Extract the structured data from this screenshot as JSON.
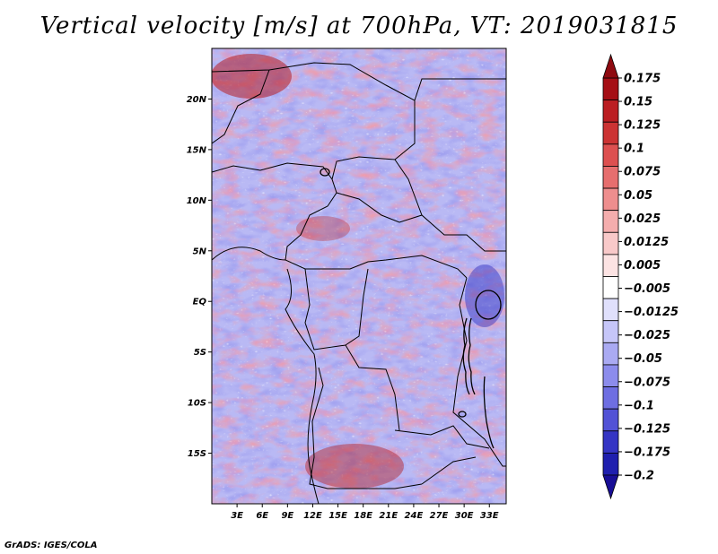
{
  "title": "Vertical velocity [m/s] at 700hPa, VT: 2019031815",
  "credit": "GrADS: IGES/COLA",
  "map": {
    "lon_range": [
      0,
      35
    ],
    "lat_range": [
      -20,
      25
    ],
    "lat_ticks": [
      {
        "value": 20,
        "label": "20N"
      },
      {
        "value": 15,
        "label": "15N"
      },
      {
        "value": 10,
        "label": "10N"
      },
      {
        "value": 5,
        "label": "5N"
      },
      {
        "value": 0,
        "label": "EQ"
      },
      {
        "value": -5,
        "label": "5S"
      },
      {
        "value": -10,
        "label": "10S"
      },
      {
        "value": -15,
        "label": "15S"
      }
    ],
    "lon_ticks": [
      {
        "value": 3,
        "label": "3E"
      },
      {
        "value": 6,
        "label": "6E"
      },
      {
        "value": 9,
        "label": "9E"
      },
      {
        "value": 12,
        "label": "12E"
      },
      {
        "value": 15,
        "label": "15E"
      },
      {
        "value": 18,
        "label": "18E"
      },
      {
        "value": 21,
        "label": "21E"
      },
      {
        "value": 24,
        "label": "24E"
      },
      {
        "value": 27,
        "label": "27E"
      },
      {
        "value": 30,
        "label": "30E"
      },
      {
        "value": 33,
        "label": "33E"
      }
    ]
  },
  "colorbar": {
    "levels": [
      {
        "label": "0.175",
        "color": "#a50f15"
      },
      {
        "label": "0.15",
        "color": "#bb1e22"
      },
      {
        "label": "0.125",
        "color": "#cc3333"
      },
      {
        "label": "0.1",
        "color": "#dd5050"
      },
      {
        "label": "0.075",
        "color": "#e66e6e"
      },
      {
        "label": "0.05",
        "color": "#ee8e8e"
      },
      {
        "label": "0.025",
        "color": "#f4adad"
      },
      {
        "label": "0.0125",
        "color": "#f8c9c9"
      },
      {
        "label": "0.005",
        "color": "#fce3e3"
      },
      {
        "label": "−0.005",
        "color": "#ffffff"
      },
      {
        "label": "−0.0125",
        "color": "#e0e0fc"
      },
      {
        "label": "−0.025",
        "color": "#c6c6f8"
      },
      {
        "label": "−0.05",
        "color": "#aaaaf2"
      },
      {
        "label": "−0.075",
        "color": "#8c8cec"
      },
      {
        "label": "−0.1",
        "color": "#6e6ee2"
      },
      {
        "label": "−0.125",
        "color": "#5252d6"
      },
      {
        "label": "−0.175",
        "color": "#3535c4"
      },
      {
        "label": "−0.2",
        "color": "#1f1fae"
      }
    ],
    "top_arrow_color": "#8e0a10",
    "bottom_arrow_color": "#180e96"
  }
}
